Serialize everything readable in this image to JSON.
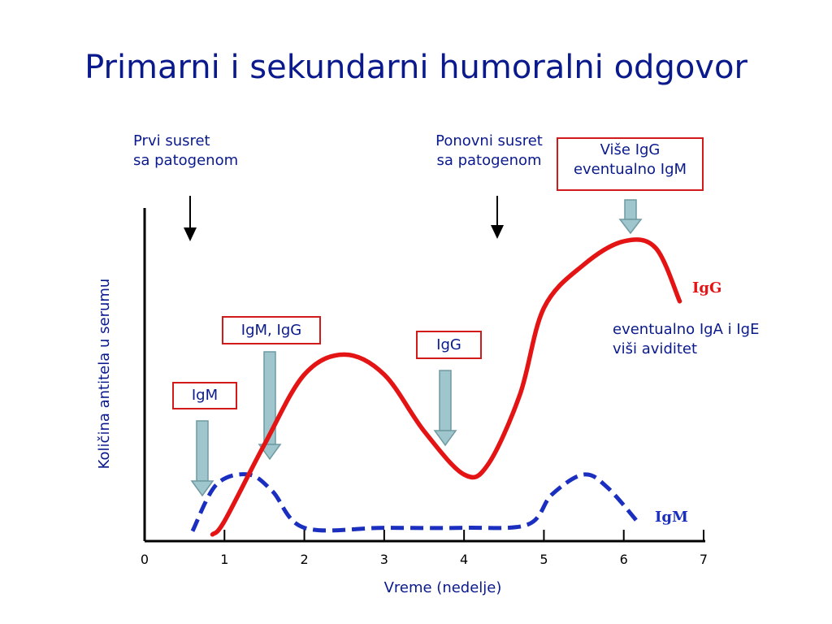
{
  "title": "Primarni i sekundarni humoralni odgovor",
  "labels": {
    "first_encounter": [
      "Prvi susret",
      "sa patogenom"
    ],
    "second_encounter": [
      "Ponovni susret",
      "sa patogenom"
    ],
    "more_igg": [
      "Više IgG",
      "eventualno IgM"
    ],
    "box_igm": "IgM",
    "box_igm_igg": "IgM, IgG",
    "box_igg": "IgG",
    "note": [
      "eventualno IgA i IgE",
      "viši aviditet"
    ],
    "curve_igg": "IgG",
    "curve_igm": "IgM"
  },
  "colors": {
    "text": "#0a1a8c",
    "igg": "#e41414",
    "igm": "#1a2fc0",
    "box_border": "#d11a1a",
    "arrow_fill": "#9ec6cc"
  },
  "chart_data": {
    "type": "line",
    "xlabel": "Vreme (nedelje)",
    "ylabel": "Količina antitela u serumu",
    "xlim": [
      0,
      7
    ],
    "xticks": [
      0,
      1,
      2,
      3,
      4,
      5,
      6,
      7
    ],
    "series": [
      {
        "name": "IgG",
        "style": "solid",
        "x": [
          0.85,
          1.0,
          1.5,
          2.0,
          2.5,
          3.0,
          3.5,
          4.0,
          4.3,
          4.7,
          5.0,
          5.5,
          6.0,
          6.4,
          6.7
        ],
        "y": [
          0.02,
          0.06,
          0.29,
          0.5,
          0.56,
          0.5,
          0.33,
          0.2,
          0.23,
          0.44,
          0.7,
          0.83,
          0.9,
          0.88,
          0.72
        ]
      },
      {
        "name": "IgM",
        "style": "dashed",
        "x": [
          0.6,
          0.9,
          1.3,
          1.6,
          2.0,
          3.0,
          4.0,
          4.8,
          5.1,
          5.5,
          5.8,
          6.2
        ],
        "y": [
          0.03,
          0.17,
          0.2,
          0.15,
          0.04,
          0.04,
          0.04,
          0.05,
          0.14,
          0.2,
          0.16,
          0.05
        ]
      }
    ],
    "annotations": [
      {
        "text": "Prvi susret sa patogenom",
        "x": 0.55
      },
      {
        "text": "Ponovni susret sa patogenom",
        "x": 4.45
      }
    ]
  }
}
